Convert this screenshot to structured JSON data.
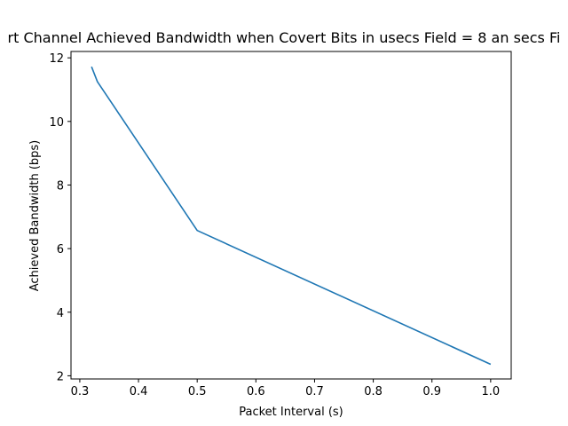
{
  "chart_data": {
    "type": "line",
    "title": "rt Channel Achieved Bandwidth when Covert Bits in usecs Field = 8 an secs Fi",
    "xlabel": "Packet Interval (s)",
    "ylabel": "Achieved Bandwidth (bps)",
    "xlim": [
      0.285,
      1.035
    ],
    "ylim": [
      1.9,
      12.2
    ],
    "xticks": [
      0.3,
      0.4,
      0.5,
      0.6,
      0.7,
      0.8,
      0.9,
      1.0
    ],
    "xtick_labels": [
      "0.3",
      "0.4",
      "0.5",
      "0.6",
      "0.7",
      "0.8",
      "0.9",
      "1.0"
    ],
    "yticks": [
      2,
      4,
      6,
      8,
      10,
      12
    ],
    "ytick_labels": [
      "2",
      "4",
      "6",
      "8",
      "10",
      "12"
    ],
    "grid": false,
    "series": [
      {
        "color": "#1f77b4",
        "x": [
          0.32,
          0.33,
          0.5,
          1.0
        ],
        "y": [
          11.72,
          11.25,
          6.57,
          2.36
        ]
      }
    ]
  }
}
